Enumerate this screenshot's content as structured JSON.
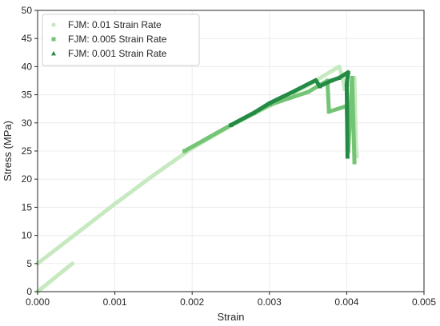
{
  "chart_data": {
    "type": "scatter",
    "title": "",
    "xlabel": "Strain",
    "ylabel": "Stress (MPa)",
    "xlim": [
      0,
      0.005
    ],
    "ylim": [
      0,
      50
    ],
    "xticks": [
      "0.000",
      "0.001",
      "0.002",
      "0.003",
      "0.004",
      "0.005"
    ],
    "xtick_values": [
      0,
      0.001,
      0.002,
      0.003,
      0.004,
      0.005
    ],
    "yticks": [
      "0",
      "5",
      "10",
      "15",
      "20",
      "25",
      "30",
      "35",
      "40",
      "45",
      "50"
    ],
    "ytick_values": [
      0,
      5,
      10,
      15,
      20,
      25,
      30,
      35,
      40,
      45,
      50
    ],
    "grid": true,
    "legend_position": "top-left",
    "series": [
      {
        "name": "FJM: 0.01 Strain Rate",
        "marker": "circle",
        "color": "#c7e9c0",
        "segments": [
          [
            [
              0.0,
              0.0
            ],
            [
              0.00045,
              5.0
            ]
          ],
          [
            [
              0.0,
              5.0
            ],
            [
              0.0005,
              10.3
            ],
            [
              0.001,
              15.6
            ],
            [
              0.0015,
              20.7
            ],
            [
              0.002,
              25.5
            ],
            [
              0.0025,
              29.5
            ],
            [
              0.003,
              33.0
            ],
            [
              0.0035,
              36.7
            ],
            [
              0.0039,
              40.0
            ],
            [
              0.00395,
              38.0
            ],
            [
              0.00397,
              36.0
            ],
            [
              0.0041,
              38.0
            ],
            [
              0.00412,
              26.0
            ],
            [
              0.00413,
              24.0
            ]
          ]
        ]
      },
      {
        "name": "FJM: 0.005 Strain Rate",
        "marker": "square",
        "color": "#74c476",
        "segments": [
          [
            [
              0.0019,
              25.0
            ],
            [
              0.0025,
              29.6
            ],
            [
              0.003,
              33.2
            ],
            [
              0.0035,
              35.5
            ],
            [
              0.00375,
              37.5
            ],
            [
              0.00377,
              32.0
            ],
            [
              0.004,
              33.0
            ],
            [
              0.00402,
              25.0
            ],
            [
              0.00407,
              38.0
            ],
            [
              0.0041,
              23.0
            ]
          ]
        ]
      },
      {
        "name": "FJM: 0.001 Strain Rate",
        "marker": "triangle",
        "color": "#238b45",
        "segments": [
          [
            [
              0.0025,
              29.6
            ],
            [
              0.0028,
              31.8
            ],
            [
              0.003,
              33.5
            ],
            [
              0.0033,
              35.5
            ],
            [
              0.0036,
              37.6
            ],
            [
              0.00365,
              36.5
            ],
            [
              0.0038,
              37.5
            ],
            [
              0.0039,
              38.0
            ],
            [
              0.00402,
              39.0
            ],
            [
              0.004,
              37.0
            ],
            [
              0.00401,
              24.0
            ]
          ]
        ]
      }
    ]
  }
}
